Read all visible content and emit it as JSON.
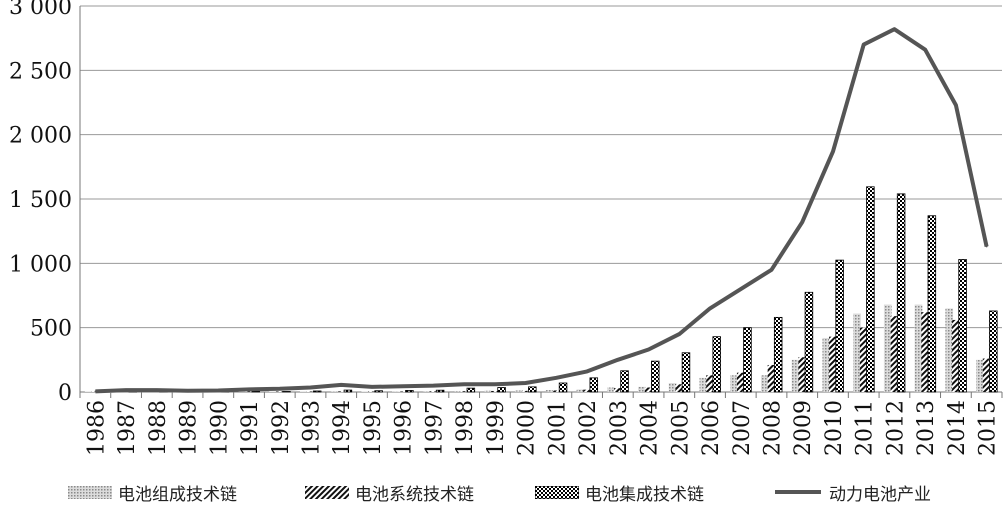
{
  "chart_data": {
    "type": "bar",
    "categories": [
      "1986",
      "1987",
      "1988",
      "1989",
      "1990",
      "1991",
      "1992",
      "1993",
      "1994",
      "1995",
      "1996",
      "1997",
      "1998",
      "1999",
      "2000",
      "2001",
      "2002",
      "2003",
      "2004",
      "2005",
      "2006",
      "2007",
      "2008",
      "2009",
      "2010",
      "2011",
      "2012",
      "2013",
      "2014",
      "2015"
    ],
    "ylim": [
      0,
      3000
    ],
    "yticks": [
      0,
      500,
      1000,
      1500,
      2000,
      2500,
      3000
    ],
    "ytick_labels": [
      "0",
      "500",
      "1 000",
      "1 500",
      "2 000",
      "2 500",
      "3 000"
    ],
    "grid": true,
    "legend_position": "bottom",
    "series": [
      {
        "name": "电池组成技术链",
        "type": "bar",
        "color": "#b0b0b0",
        "values": [
          1,
          1,
          2,
          1,
          2,
          3,
          2,
          4,
          6,
          4,
          5,
          6,
          8,
          10,
          12,
          15,
          20,
          35,
          40,
          70,
          110,
          130,
          130,
          250,
          420,
          610,
          680,
          680,
          650,
          250
        ]
      },
      {
        "name": "电池系统技术链",
        "type": "bar",
        "color": "#333333",
        "values": [
          1,
          1,
          2,
          1,
          1,
          2,
          2,
          3,
          5,
          3,
          4,
          5,
          6,
          8,
          9,
          12,
          18,
          30,
          35,
          60,
          130,
          150,
          210,
          270,
          430,
          500,
          590,
          620,
          560,
          260
        ]
      },
      {
        "name": "电池集成技术链",
        "type": "bar",
        "color": "#000000",
        "values": [
          2,
          3,
          3,
          2,
          3,
          5,
          4,
          8,
          15,
          10,
          12,
          14,
          30,
          35,
          40,
          70,
          110,
          165,
          240,
          305,
          430,
          500,
          580,
          775,
          1025,
          1595,
          1540,
          1370,
          1030,
          630
        ]
      },
      {
        "name": "动力电池产业",
        "type": "line",
        "color": "#555555",
        "values": [
          5,
          15,
          15,
          10,
          12,
          20,
          25,
          35,
          55,
          40,
          45,
          50,
          60,
          60,
          70,
          110,
          160,
          250,
          330,
          450,
          650,
          800,
          950,
          1320,
          1870,
          2700,
          2820,
          2660,
          2230,
          1130
        ]
      }
    ]
  }
}
